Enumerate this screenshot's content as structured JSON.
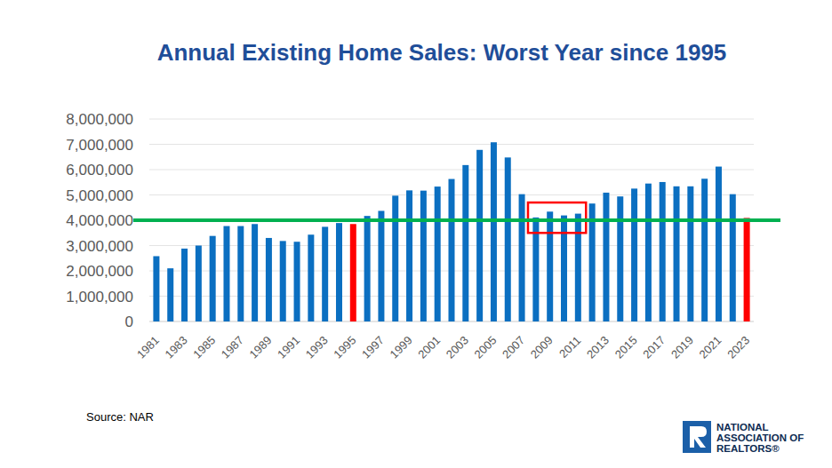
{
  "chart_data": {
    "type": "bar",
    "title": "Annual Existing Home Sales: Worst Year since 1995",
    "categories": [
      "1981",
      null,
      "1983",
      null,
      "1985",
      null,
      "1987",
      null,
      "1989",
      null,
      "1991",
      null,
      "1993",
      null,
      "1995",
      null,
      "1997",
      null,
      "1999",
      null,
      "2001",
      null,
      "2003",
      null,
      "2005",
      null,
      "2007",
      null,
      "2009",
      null,
      "2011",
      null,
      "2013",
      null,
      "2015",
      null,
      "2017",
      null,
      "2019",
      null,
      "2021",
      null,
      "2023"
    ],
    "values": [
      2580000,
      2100000,
      2880000,
      3000000,
      3380000,
      3770000,
      3770000,
      3850000,
      3300000,
      3180000,
      3150000,
      3430000,
      3740000,
      3890000,
      3850000,
      4170000,
      4370000,
      4970000,
      5180000,
      5170000,
      5330000,
      5630000,
      6180000,
      6780000,
      7080000,
      6480000,
      5030000,
      4110000,
      4340000,
      4190000,
      4260000,
      4660000,
      5090000,
      4940000,
      5250000,
      5450000,
      5510000,
      5340000,
      5340000,
      5640000,
      6120000,
      5030000,
      4090000
    ],
    "colors": [
      "#0b6fc1",
      "#0b6fc1",
      "#0b6fc1",
      "#0b6fc1",
      "#0b6fc1",
      "#0b6fc1",
      "#0b6fc1",
      "#0b6fc1",
      "#0b6fc1",
      "#0b6fc1",
      "#0b6fc1",
      "#0b6fc1",
      "#0b6fc1",
      "#0b6fc1",
      "#ff0000",
      "#0b6fc1",
      "#0b6fc1",
      "#0b6fc1",
      "#0b6fc1",
      "#0b6fc1",
      "#0b6fc1",
      "#0b6fc1",
      "#0b6fc1",
      "#0b6fc1",
      "#0b6fc1",
      "#0b6fc1",
      "#0b6fc1",
      "#0b6fc1",
      "#0b6fc1",
      "#0b6fc1",
      "#0b6fc1",
      "#0b6fc1",
      "#0b6fc1",
      "#0b6fc1",
      "#0b6fc1",
      "#0b6fc1",
      "#0b6fc1",
      "#0b6fc1",
      "#0b6fc1",
      "#0b6fc1",
      "#0b6fc1",
      "#0b6fc1",
      "#ff0000"
    ],
    "ylim": [
      0,
      8000000
    ],
    "yticks": [
      0,
      {
        "value": 1000000,
        "label": "1,000,000"
      },
      {
        "value": 2000000,
        "label": "2,000,000"
      },
      {
        "value": 3000000,
        "label": "3,000,000"
      },
      {
        "value": 4000000,
        "label": "4,000,000"
      },
      {
        "value": 5000000,
        "label": "5,000,000"
      },
      {
        "value": 6000000,
        "label": "6,000,000"
      },
      {
        "value": 7000000,
        "label": "7,000,000"
      },
      {
        "value": 8000000,
        "label": "8,000,000"
      }
    ],
    "grid": true,
    "reference_line": {
      "value": 4000000,
      "color": "#00b050"
    },
    "highlight": {
      "x": [
        27,
        30
      ],
      "y": [
        3500000,
        4700000
      ],
      "color": "#ff0000"
    },
    "source": "Source: NAR",
    "logo_text": [
      "NATIONAL",
      "ASSOCIATION OF",
      "REALTORS®"
    ]
  }
}
